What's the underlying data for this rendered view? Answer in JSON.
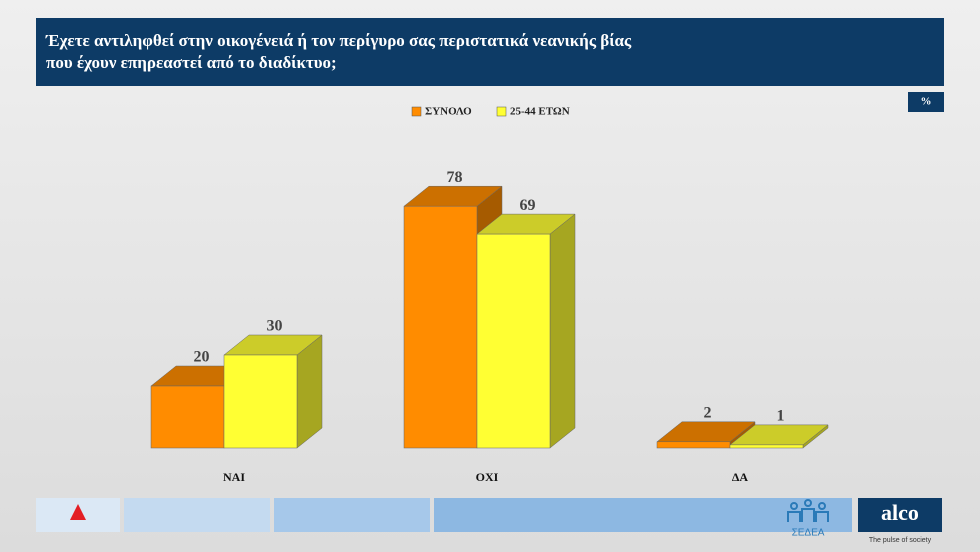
{
  "chart_data": {
    "type": "bar3d",
    "title": [
      "Έχετε αντιληφθεί στην οικογένειά ή τον περίγυρο σας περιστατικά νεανικής βίας",
      "που έχουν επηρεαστεί από το διαδίκτυο;"
    ],
    "unit_label": "%",
    "categories": [
      "ΝΑΙ",
      "ΟΧΙ",
      "ΔΑ"
    ],
    "series": [
      {
        "name": "ΣΥΝΟΛΟ",
        "color": "#ff8c00",
        "values": [
          20,
          78,
          2
        ]
      },
      {
        "name": "25-44 ΕΤΩΝ",
        "color": "#ffff33",
        "values": [
          30,
          69,
          1
        ]
      }
    ]
  },
  "footer": {
    "brand": "alco",
    "tagline": "The pulse of society",
    "partner": "ΣΕΔΕΑ"
  }
}
